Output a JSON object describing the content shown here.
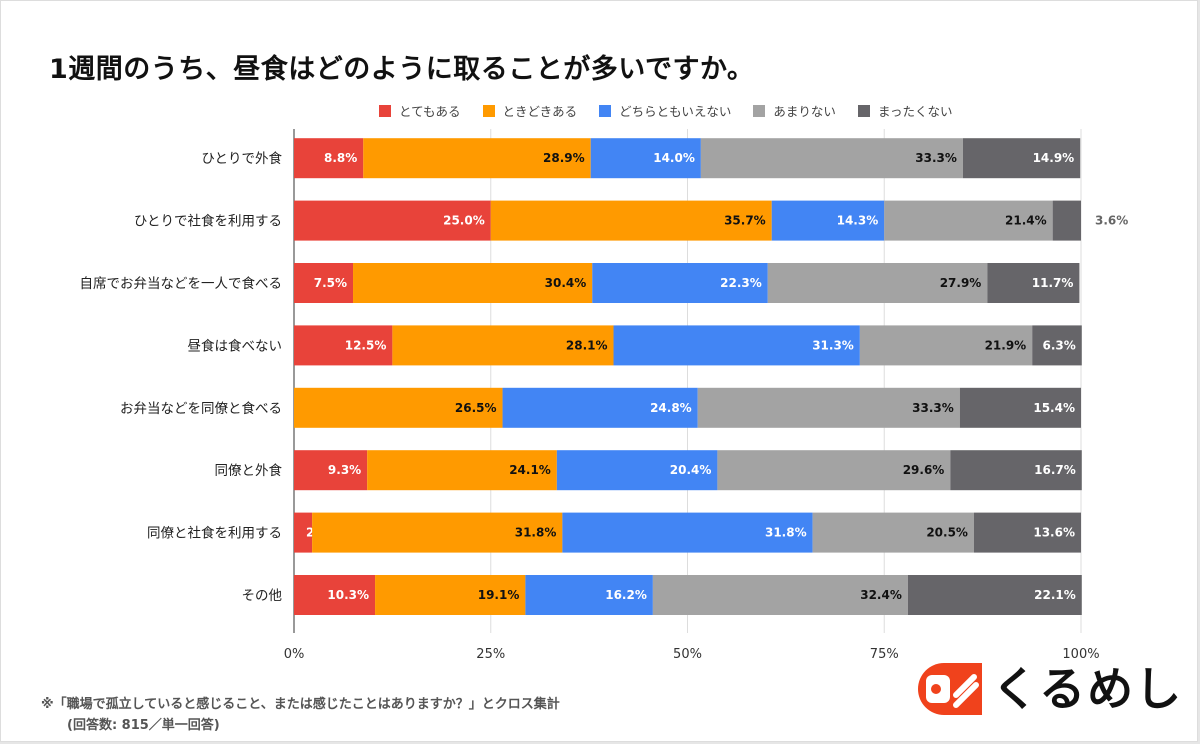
{
  "chart_data": {
    "type": "bar",
    "orientation": "horizontal",
    "stacked": "percent",
    "title": "1週間のうち、昼食はどのように取ることが多いですか。",
    "categories": [
      "ひとりで外食",
      "ひとりで社食を利用する",
      "自席でお弁当などを一人で食べる",
      "昼食は食べない",
      "お弁当などを同僚と食べる",
      "同僚と外食",
      "同僚と社食を利用する",
      "その他"
    ],
    "series": [
      {
        "name": "とてもある",
        "color": "#e8433a",
        "values": [
          8.8,
          25.0,
          7.5,
          12.5,
          0.0,
          9.3,
          2.3,
          10.3
        ]
      },
      {
        "name": "ときどきある",
        "color": "#ff9a00",
        "values": [
          28.9,
          35.7,
          30.4,
          28.1,
          26.5,
          24.1,
          31.8,
          19.1
        ]
      },
      {
        "name": "どちらともいえない",
        "color": "#4285f4",
        "values": [
          14.0,
          14.3,
          22.3,
          31.3,
          24.8,
          20.4,
          31.8,
          16.2
        ]
      },
      {
        "name": "あまりない",
        "color": "#a3a3a3",
        "values": [
          33.3,
          21.4,
          27.9,
          21.9,
          33.3,
          29.6,
          20.5,
          32.4
        ]
      },
      {
        "name": "まったくない",
        "color": "#666569",
        "values": [
          14.9,
          3.6,
          11.7,
          6.3,
          15.4,
          16.7,
          13.6,
          22.1
        ]
      }
    ],
    "xlim": [
      0,
      100
    ],
    "xticks": [
      "0%",
      "25%",
      "50%",
      "75%",
      "100%"
    ],
    "grid": true,
    "legend": "top"
  },
  "footer": {
    "note_line1": "※「職場で孤立していると感じること、または感じたことはありますか？」とクロス集計",
    "note_line2": "(回答数: 815／単一回答)"
  },
  "logo": {
    "text": "くるめし",
    "color": "#f0421c"
  }
}
